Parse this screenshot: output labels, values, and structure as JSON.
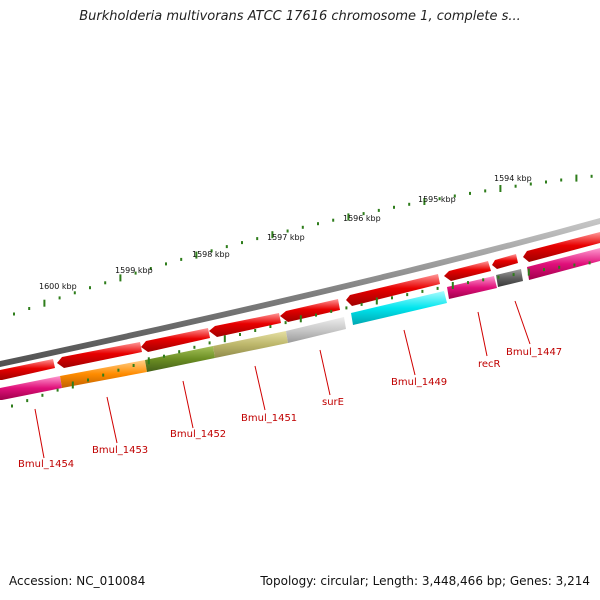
{
  "title": "Burkholderia multivorans ATCC 17616 chromosome 1, complete s...",
  "footer": {
    "accession": "Accession: NC_010084",
    "summary": "Topology: circular; Length: 3,448,466 bp; Genes: 3,214"
  },
  "scale_labels": [
    "1600 kbp",
    "1599 kbp",
    "1598 kbp",
    "1597 kbp",
    "1596 kbp",
    "1595 kbp",
    "1594 kbp"
  ],
  "gene_labels": [
    "Bmul_1454",
    "Bmul_1453",
    "Bmul_1452",
    "Bmul_1451",
    "surE",
    "Bmul_1449",
    "recR",
    "Bmul_1447"
  ],
  "colors": {
    "tick": "#2e7d1b",
    "backbone": "#808080",
    "cds_red": "#e80000",
    "label_red": "#c00000",
    "magenta": "#e0107a",
    "orange": "#ff8c00",
    "olive": "#6b8e23",
    "khaki": "#bdb76b",
    "light_gray": "#c8c8c8",
    "cyan": "#00e5ee",
    "dark_gray": "#606060"
  }
}
